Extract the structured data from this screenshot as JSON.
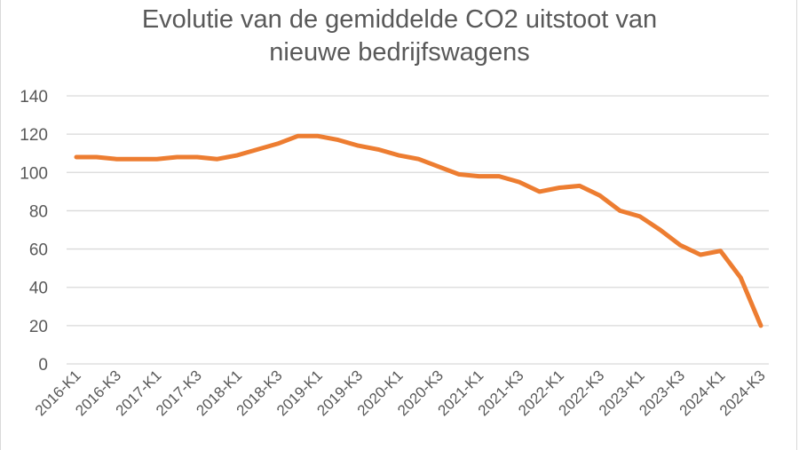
{
  "chart_data": {
    "type": "line",
    "title": "Evolutie van de gemiddelde CO2 uitstoot van nieuwe bedrijfswagens",
    "title_lines": [
      "Evolutie van de gemiddelde CO2 uitstoot van",
      "nieuwe bedrijfswagens"
    ],
    "xlabel": "",
    "ylabel": "",
    "ylim": [
      0,
      140
    ],
    "yticks": [
      0,
      20,
      40,
      60,
      80,
      100,
      120,
      140
    ],
    "grid": true,
    "legend": "none",
    "line_color": "#ED7D31",
    "categories": [
      "2016-K1",
      "2016-K2",
      "2016-K3",
      "2016-K4",
      "2017-K1",
      "2017-K2",
      "2017-K3",
      "2017-K4",
      "2018-K1",
      "2018-K2",
      "2018-K3",
      "2018-K4",
      "2019-K1",
      "2019-K2",
      "2019-K3",
      "2019-K4",
      "2020-K1",
      "2020-K2",
      "2020-K3",
      "2020-K4",
      "2021-K1",
      "2021-K2",
      "2021-K3",
      "2021-K4",
      "2022-K1",
      "2022-K2",
      "2022-K3",
      "2022-K4",
      "2023-K1",
      "2023-K2",
      "2023-K3",
      "2023-K4",
      "2024-K1",
      "2024-K2",
      "2024-K3"
    ],
    "shown_tick_labels": [
      "2016-K1",
      "2016-K3",
      "2017-K1",
      "2017-K3",
      "2018-K1",
      "2018-K3",
      "2019-K1",
      "2019-K3",
      "2020-K1",
      "2020-K3",
      "2021-K1",
      "2021-K3",
      "2022-K1",
      "2022-K3",
      "2023-K1",
      "2023-K3",
      "2024-K1",
      "2024-K3"
    ],
    "series": [
      {
        "name": "Gemiddelde CO2 uitstoot",
        "values": [
          108,
          108,
          107,
          107,
          107,
          108,
          108,
          107,
          109,
          112,
          115,
          119,
          119,
          117,
          114,
          112,
          109,
          107,
          103,
          99,
          98,
          98,
          95,
          90,
          92,
          93,
          88,
          80,
          77,
          70,
          62,
          57,
          59,
          45,
          20
        ]
      }
    ]
  }
}
